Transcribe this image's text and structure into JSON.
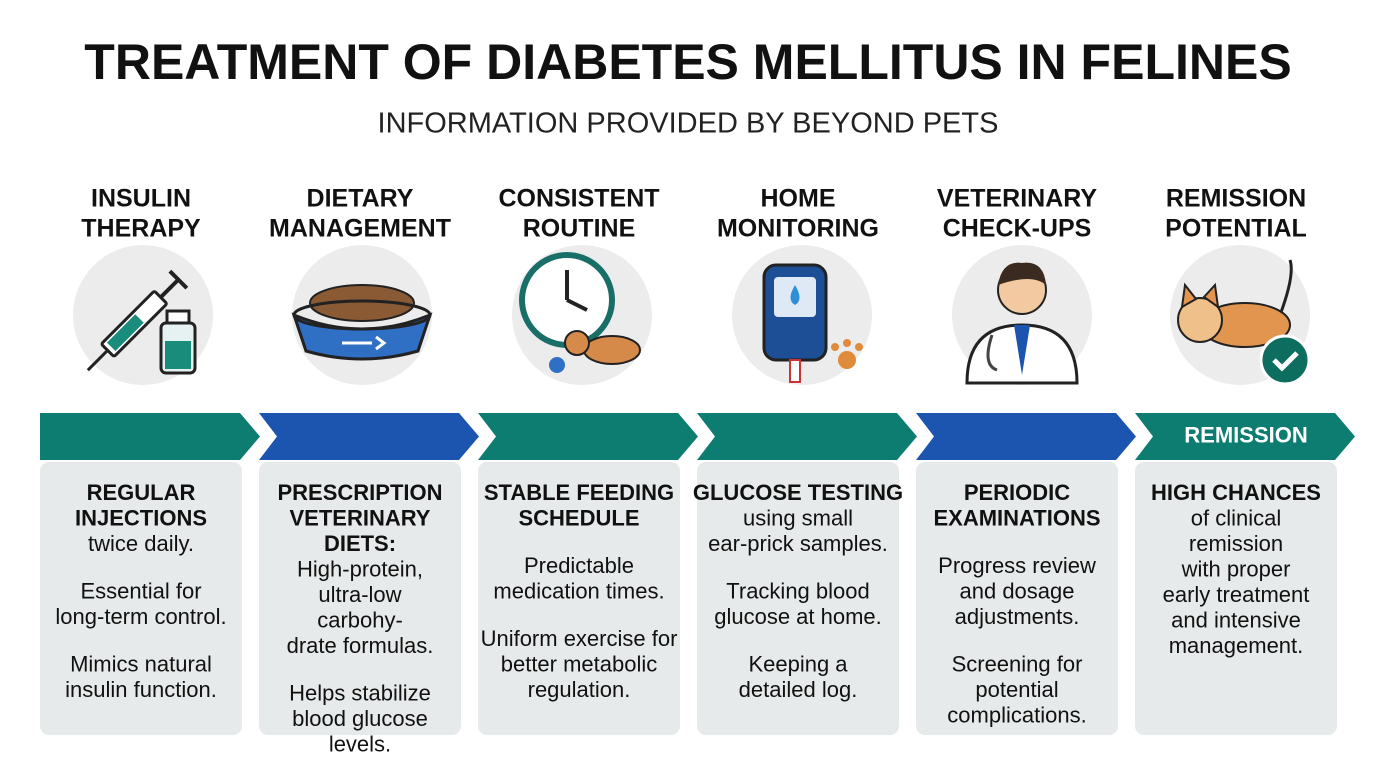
{
  "header": {
    "title": "TREATMENT OF DIABETES MELLITUS IN FELINES",
    "subtitle": "INFORMATION PROVIDED BY BEYOND PETS"
  },
  "columns": [
    {
      "heading": [
        "INSULIN",
        "THERAPY"
      ],
      "band_color": "#0d7d72",
      "blocks": [
        [
          {
            "text": "REGULAR",
            "bold": true
          },
          {
            "text": "INJECTIONS",
            "bold": true
          },
          {
            "text": "twice daily."
          }
        ],
        [
          {
            "text": "Essential for"
          },
          {
            "text": "long-term control."
          }
        ],
        [
          {
            "text": "Mimics natural"
          },
          {
            "text": "insulin function."
          }
        ]
      ]
    },
    {
      "heading": [
        "DIETARY",
        "MANAGEMENT"
      ],
      "band_color": "#1c55b0",
      "blocks": [
        [
          {
            "text": "PRESCRIPTION",
            "bold": true
          },
          {
            "text": "VETERINARY",
            "bold": true
          },
          {
            "text": "DIETS:",
            "bold": true
          },
          {
            "text": "High-protein,"
          },
          {
            "text": "ultra-low"
          },
          {
            "text": "carbohy-"
          },
          {
            "text": "drate formulas."
          }
        ],
        [
          {
            "text": "Helps stabilize"
          },
          {
            "text": "blood glucose"
          },
          {
            "text": "levels."
          }
        ]
      ]
    },
    {
      "heading": [
        "CONSISTENT",
        "ROUTINE"
      ],
      "band_color": "#0d7d72",
      "blocks": [
        [
          {
            "text": "STABLE FEEDING",
            "bold": true
          },
          {
            "text": "SCHEDULE",
            "bold": true
          }
        ],
        [
          {
            "text": "Predictable"
          },
          {
            "text": "medication times."
          }
        ],
        [
          {
            "text": "Uniform exercise for"
          },
          {
            "text": "better metabolic"
          },
          {
            "text": "regulation."
          }
        ]
      ]
    },
    {
      "heading": [
        "HOME",
        "MONITORING"
      ],
      "band_color": "#0d7d72",
      "blocks": [
        [
          {
            "text": "GLUCOSE TESTING",
            "bold": true
          },
          {
            "text": "using small"
          },
          {
            "text": "ear-prick samples."
          }
        ],
        [
          {
            "text": "Tracking blood"
          },
          {
            "text": "glucose at home."
          }
        ],
        [
          {
            "text": "Keeping a"
          },
          {
            "text": "detailed log."
          }
        ]
      ]
    },
    {
      "heading": [
        "VETERINARY",
        "CHECK-UPS"
      ],
      "band_color": "#1c55b0",
      "blocks": [
        [
          {
            "text": "PERIODIC",
            "bold": true
          },
          {
            "text": "EXAMINATIONS",
            "bold": true
          }
        ],
        [
          {
            "text": "Progress review"
          },
          {
            "text": "and dosage"
          },
          {
            "text": "adjustments."
          }
        ],
        [
          {
            "text": "Screening for"
          },
          {
            "text": "potential"
          },
          {
            "text": "complications."
          }
        ]
      ]
    },
    {
      "heading": [
        "REMISSION",
        "POTENTIAL"
      ],
      "band_color": "#0d7d72",
      "band_label": "REMISSION",
      "blocks": [
        [
          {
            "text": "HIGH CHANCES",
            "bold": true
          },
          {
            "text": "of clinical"
          },
          {
            "text": "remission"
          },
          {
            "text": "with proper"
          },
          {
            "text": "early treatment"
          },
          {
            "text": "and intensive"
          },
          {
            "text": "management."
          }
        ]
      ]
    }
  ]
}
